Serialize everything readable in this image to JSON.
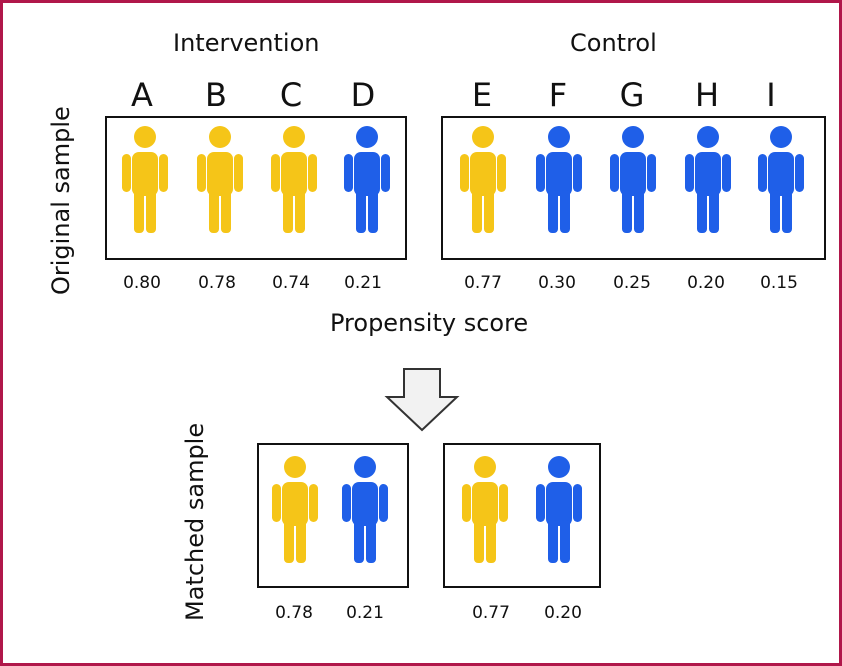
{
  "colors": {
    "frame": "#b0174a",
    "treated_yellow": "#f5c518",
    "untreated_blue": "#1f5fe8"
  },
  "groups": {
    "intervention": "Intervention",
    "control": "Control"
  },
  "labels": {
    "original_sample": "Original sample",
    "matched_sample": "Matched sample",
    "propensity_score": "Propensity score"
  },
  "original": {
    "intervention": [
      {
        "letter": "A",
        "score": "0.80",
        "color": "yellow"
      },
      {
        "letter": "B",
        "score": "0.78",
        "color": "yellow"
      },
      {
        "letter": "C",
        "score": "0.74",
        "color": "yellow"
      },
      {
        "letter": "D",
        "score": "0.21",
        "color": "blue"
      }
    ],
    "control": [
      {
        "letter": "E",
        "score": "0.77",
        "color": "yellow"
      },
      {
        "letter": "F",
        "score": "0.30",
        "color": "blue"
      },
      {
        "letter": "G",
        "score": "0.25",
        "color": "blue"
      },
      {
        "letter": "H",
        "score": "0.20",
        "color": "blue"
      },
      {
        "letter": "I",
        "score": "0.15",
        "color": "blue"
      }
    ]
  },
  "matched": {
    "intervention": [
      {
        "score": "0.78",
        "color": "yellow"
      },
      {
        "score": "0.21",
        "color": "blue"
      }
    ],
    "control": [
      {
        "score": "0.77",
        "color": "yellow"
      },
      {
        "score": "0.20",
        "color": "blue"
      }
    ]
  },
  "icons": {
    "person": "person-icon",
    "arrow": "down-arrow-icon"
  }
}
